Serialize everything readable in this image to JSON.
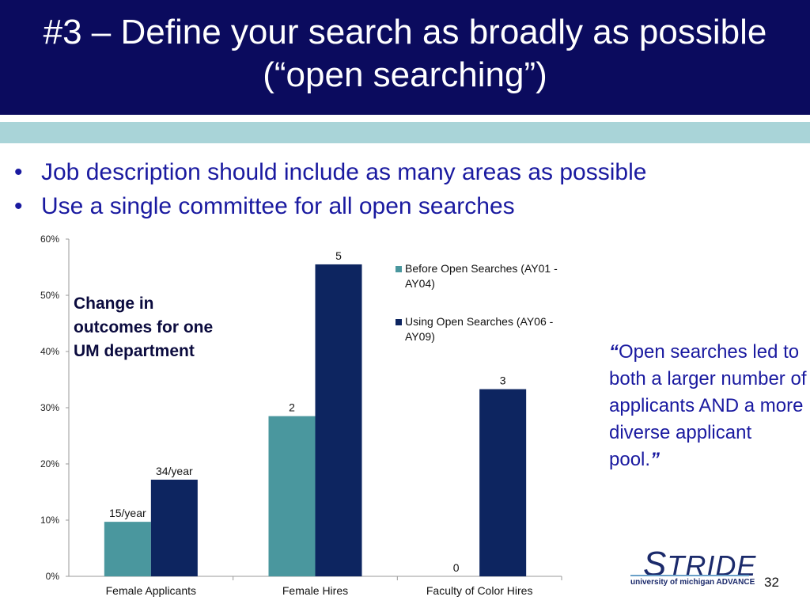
{
  "slide": {
    "title": "#3 – Define your search as broadly as possible (“open searching”)",
    "bullets": [
      "Job description should include as many areas as possible",
      "Use a single committee for all open searches"
    ],
    "note": "Change in outcomes for one UM department",
    "quote": {
      "open": "“",
      "text": "Open searches led to both a larger number of applicants AND a more diverse applicant pool.",
      "close": "”"
    },
    "logo": {
      "s": "S",
      "word": "TRIDE",
      "sub": "university of michigan ADVANCE"
    },
    "page_number": "32",
    "colors": {
      "title_bg": "#0b0b5e",
      "band": "#a9d4d8",
      "text_blue": "#1a1aa0"
    }
  },
  "chart_data": {
    "type": "bar",
    "categories": [
      "Female Applicants",
      "Female Hires",
      "Faculty of Color Hires"
    ],
    "series": [
      {
        "name": "Before Open Searches (AY01 - AY04)",
        "color": "#4a979e",
        "values": [
          9.7,
          28.5,
          0
        ],
        "labels": [
          "15/year",
          "2",
          "0"
        ]
      },
      {
        "name": "Using Open Searches (AY06 - AY09)",
        "color": "#0d2560",
        "values": [
          17.2,
          55.5,
          33.3
        ],
        "labels": [
          "34/year",
          "5",
          "3"
        ]
      }
    ],
    "ylim": [
      0,
      60
    ],
    "yticks": [
      "0%",
      "10%",
      "20%",
      "30%",
      "40%",
      "50%",
      "60%"
    ],
    "xlabel": "",
    "ylabel": "",
    "grid": false,
    "legend": "top-right"
  }
}
